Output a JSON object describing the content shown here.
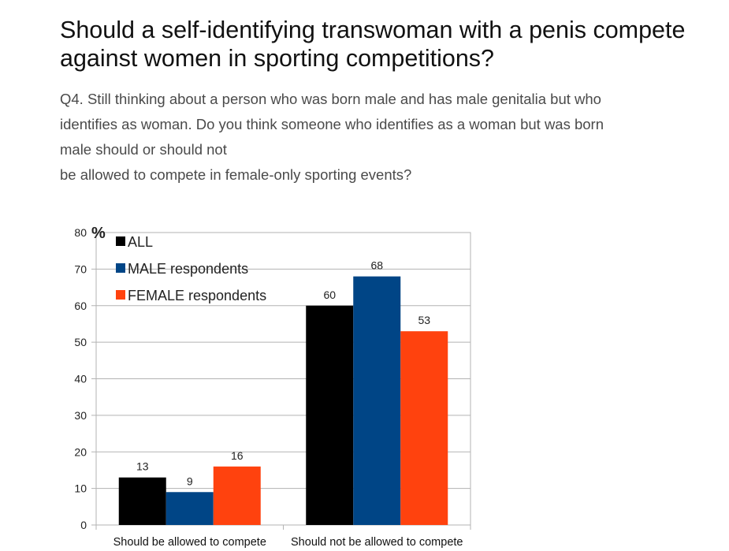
{
  "article": {
    "headline": "Should a self-identifying transwoman with a penis compete against women in sporting competitions?",
    "question_line1": "Q4. Still thinking about a person who was born male and has male genitalia but who",
    "question_line2": "identifies as woman. Do you think someone who identifies as a woman but was born",
    "question_line3": "male should or should not",
    "question_line4": "be allowed to compete in female-only sporting events?"
  },
  "chart_data": {
    "type": "bar",
    "categories": [
      "Should be allowed to compete",
      "Should not be allowed to compete"
    ],
    "series": [
      {
        "name": "ALL",
        "values": [
          13,
          60
        ],
        "color": "#000000"
      },
      {
        "name": "MALE respondents",
        "values": [
          9,
          68
        ],
        "color": "#004586"
      },
      {
        "name": "FEMALE respondents",
        "values": [
          16,
          53
        ],
        "color": "#ff420e"
      }
    ],
    "ylabel": "%",
    "ylim": [
      0,
      80
    ],
    "yticks": [
      0,
      10,
      20,
      30,
      40,
      50,
      60,
      70,
      80
    ],
    "grid": true,
    "legend": "top-left"
  }
}
